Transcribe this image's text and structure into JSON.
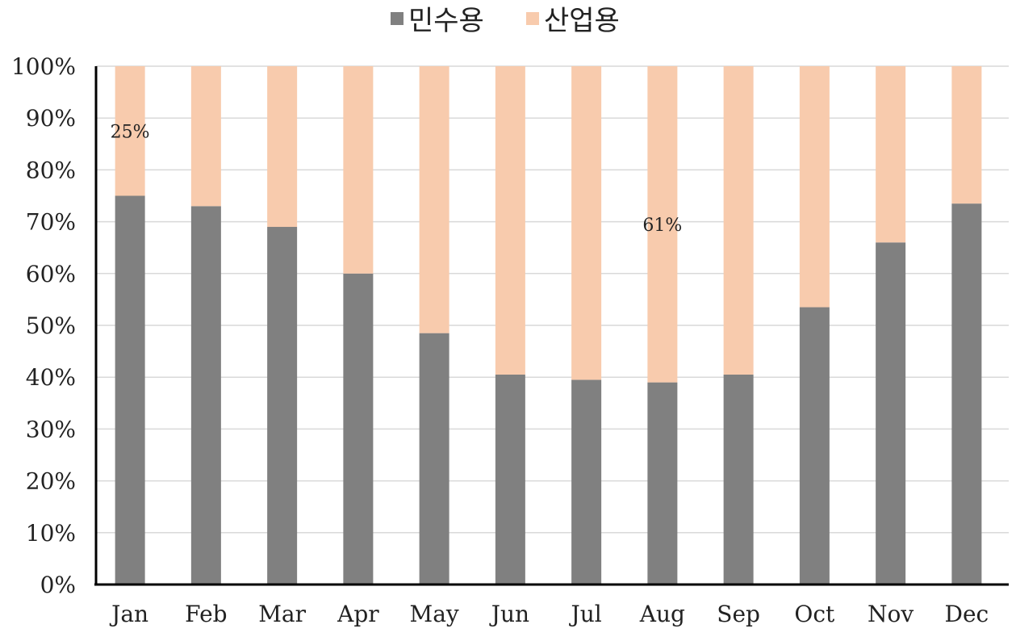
{
  "chart_data": {
    "type": "bar",
    "stacked": true,
    "percent": true,
    "categories": [
      "Jan",
      "Feb",
      "Mar",
      "Apr",
      "May",
      "Jun",
      "Jul",
      "Aug",
      "Sep",
      "Oct",
      "Nov",
      "Dec"
    ],
    "series": [
      {
        "name": "민수용",
        "color": "#808080",
        "values": [
          75,
          73,
          69,
          60,
          48.5,
          40.5,
          39.5,
          39,
          40.5,
          53.5,
          66,
          73.5
        ]
      },
      {
        "name": "산업용",
        "color": "#f8cbad",
        "values": [
          25,
          27,
          31,
          40,
          51.5,
          59.5,
          60.5,
          61,
          59.5,
          46.5,
          34,
          26.5
        ]
      }
    ],
    "yticks": [
      "0%",
      "10%",
      "20%",
      "30%",
      "40%",
      "50%",
      "60%",
      "70%",
      "80%",
      "90%",
      "100%"
    ],
    "ylim": [
      0,
      100
    ],
    "grid": true,
    "legend_position": "top",
    "annotations": [
      {
        "category": "Jan",
        "series": "산업용",
        "text": "25%"
      },
      {
        "category": "Aug",
        "series": "산업용",
        "text": "61%"
      }
    ]
  }
}
